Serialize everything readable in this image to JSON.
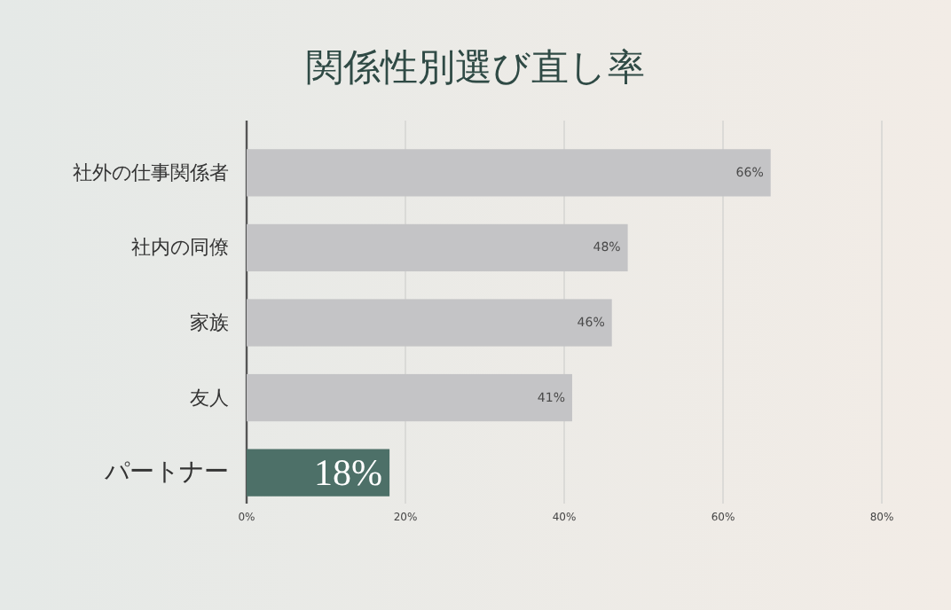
{
  "chart_data": {
    "type": "bar",
    "orientation": "horizontal",
    "title": "関係性別選び直し率",
    "categories": [
      "社外の仕事関係者",
      "社内の同僚",
      "家族",
      "友人",
      "パートナー"
    ],
    "values": [
      66,
      48,
      46,
      41,
      18
    ],
    "colors": [
      "#c4c4c6",
      "#c4c4c6",
      "#c4c4c6",
      "#c4c4c6",
      "#4d7068"
    ],
    "value_labels": [
      "66%",
      "48%",
      "46%",
      "41%",
      "18%"
    ],
    "xlim": [
      0,
      80
    ],
    "xticks": [
      {
        "value": 0,
        "label": "0%"
      },
      {
        "value": 20,
        "label": "20%"
      },
      {
        "value": 40,
        "label": "40%"
      },
      {
        "value": 60,
        "label": "60%"
      },
      {
        "value": 80,
        "label": "80%"
      }
    ],
    "grid": "x"
  }
}
